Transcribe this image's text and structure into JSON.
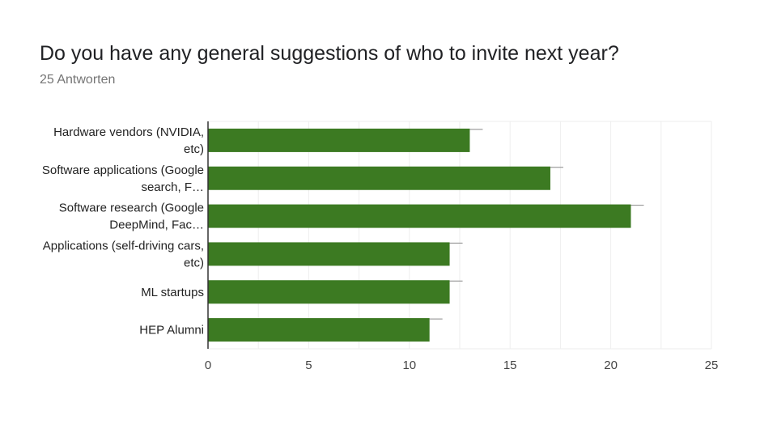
{
  "header": {
    "title": "Do you have any general suggestions of who to invite next year?",
    "subtitle": "25 Antworten"
  },
  "colors": {
    "bar": "#3c7a22",
    "grid": "#eeeeee",
    "axis": "#333333",
    "error_bar": "#888888"
  },
  "chart_data": {
    "type": "bar",
    "orientation": "horizontal",
    "categories": [
      [
        "Hardware vendors (NVIDIA,",
        "etc)"
      ],
      [
        "Software applications (Google",
        "search, F…"
      ],
      [
        "Software research (Google",
        "DeepMind, Fac…"
      ],
      [
        "Applications (self-driving cars,",
        "etc)"
      ],
      [
        "ML startups"
      ],
      [
        "HEP Alumni"
      ]
    ],
    "values": [
      13,
      17,
      21,
      12,
      12,
      11
    ],
    "xlim": [
      0,
      25
    ],
    "xticks": [
      0,
      5,
      10,
      15,
      20,
      25
    ],
    "error_bars": true,
    "grid": true
  }
}
